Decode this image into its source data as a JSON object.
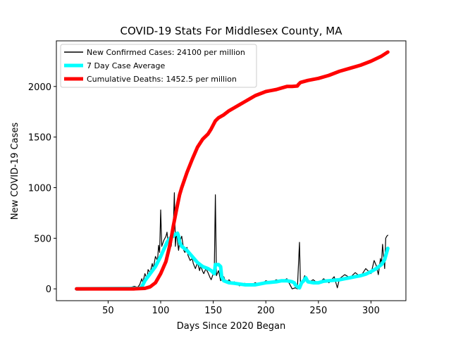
{
  "chart_data": {
    "type": "line",
    "title": "COVID-19 Stats For Middlesex County, MA",
    "xlabel": "Days Since 2020 Began",
    "ylabel": "New COVID-19 Cases",
    "xlim": [
      0.8,
      333.2
    ],
    "ylim": [
      -117,
      2451
    ],
    "x_ticks": [
      50,
      100,
      150,
      200,
      250,
      300
    ],
    "y_ticks": [
      0,
      500,
      1000,
      1500,
      2000
    ],
    "x_tick_labels": [
      "50",
      "100",
      "150",
      "200",
      "250",
      "300"
    ],
    "y_tick_labels": [
      "0",
      "500",
      "1000",
      "1500",
      "2000"
    ],
    "grid": false,
    "legend_position": "top-left",
    "series": [
      {
        "name": "New Confirmed Cases: 24100 per million",
        "color": "#000000",
        "style": "thin",
        "points": [
          [
            20,
            0
          ],
          [
            60,
            0
          ],
          [
            70,
            10
          ],
          [
            75,
            25
          ],
          [
            78,
            15
          ],
          [
            80,
            40
          ],
          [
            82,
            100
          ],
          [
            83,
            60
          ],
          [
            85,
            150
          ],
          [
            87,
            100
          ],
          [
            88,
            190
          ],
          [
            90,
            160
          ],
          [
            92,
            250
          ],
          [
            93,
            200
          ],
          [
            95,
            320
          ],
          [
            97,
            280
          ],
          [
            98,
            430
          ],
          [
            99,
            360
          ],
          [
            100,
            780
          ],
          [
            101,
            420
          ],
          [
            103,
            480
          ],
          [
            105,
            520
          ],
          [
            106,
            560
          ],
          [
            107,
            460
          ],
          [
            108,
            510
          ],
          [
            110,
            420
          ],
          [
            112,
            600
          ],
          [
            113,
            950
          ],
          [
            114,
            420
          ],
          [
            115,
            560
          ],
          [
            117,
            380
          ],
          [
            118,
            460
          ],
          [
            120,
            520
          ],
          [
            122,
            380
          ],
          [
            123,
            360
          ],
          [
            125,
            410
          ],
          [
            126,
            330
          ],
          [
            128,
            280
          ],
          [
            130,
            300
          ],
          [
            131,
            250
          ],
          [
            133,
            200
          ],
          [
            135,
            260
          ],
          [
            137,
            180
          ],
          [
            138,
            230
          ],
          [
            140,
            170
          ],
          [
            141,
            150
          ],
          [
            143,
            200
          ],
          [
            145,
            160
          ],
          [
            147,
            110
          ],
          [
            148,
            90
          ],
          [
            150,
            150
          ],
          [
            151,
            200
          ],
          [
            152,
            930
          ],
          [
            153,
            130
          ],
          [
            155,
            180
          ],
          [
            157,
            80
          ],
          [
            160,
            120
          ],
          [
            162,
            60
          ],
          [
            165,
            90
          ],
          [
            168,
            50
          ],
          [
            170,
            70
          ],
          [
            175,
            30
          ],
          [
            180,
            55
          ],
          [
            185,
            35
          ],
          [
            190,
            60
          ],
          [
            195,
            40
          ],
          [
            200,
            80
          ],
          [
            205,
            60
          ],
          [
            210,
            90
          ],
          [
            215,
            70
          ],
          [
            220,
            100
          ],
          [
            222,
            60
          ],
          [
            225,
            0
          ],
          [
            228,
            10
          ],
          [
            230,
            0
          ],
          [
            232,
            460
          ],
          [
            233,
            20
          ],
          [
            235,
            80
          ],
          [
            237,
            130
          ],
          [
            240,
            60
          ],
          [
            245,
            90
          ],
          [
            250,
            50
          ],
          [
            255,
            100
          ],
          [
            260,
            60
          ],
          [
            265,
            120
          ],
          [
            268,
            10
          ],
          [
            270,
            100
          ],
          [
            275,
            140
          ],
          [
            280,
            110
          ],
          [
            285,
            160
          ],
          [
            290,
            120
          ],
          [
            295,
            200
          ],
          [
            300,
            150
          ],
          [
            303,
            280
          ],
          [
            305,
            230
          ],
          [
            307,
            140
          ],
          [
            309,
            300
          ],
          [
            310,
            250
          ],
          [
            311,
            440
          ],
          [
            313,
            200
          ],
          [
            314,
            500
          ],
          [
            315,
            520
          ],
          [
            316,
            530
          ]
        ]
      },
      {
        "name": "7 Day Case Average",
        "color": "#00ffff",
        "style": "thick",
        "points": [
          [
            20,
            0
          ],
          [
            80,
            5
          ],
          [
            82,
            20
          ],
          [
            85,
            80
          ],
          [
            90,
            150
          ],
          [
            95,
            220
          ],
          [
            100,
            320
          ],
          [
            103,
            390
          ],
          [
            106,
            460
          ],
          [
            108,
            490
          ],
          [
            110,
            510
          ],
          [
            112,
            520
          ],
          [
            114,
            540
          ],
          [
            116,
            550
          ],
          [
            117,
            520
          ],
          [
            118,
            460
          ],
          [
            120,
            420
          ],
          [
            125,
            380
          ],
          [
            130,
            320
          ],
          [
            135,
            260
          ],
          [
            140,
            220
          ],
          [
            145,
            200
          ],
          [
            148,
            180
          ],
          [
            150,
            160
          ],
          [
            151,
            150
          ],
          [
            152,
            240
          ],
          [
            155,
            240
          ],
          [
            157,
            220
          ],
          [
            158,
            120
          ],
          [
            160,
            80
          ],
          [
            165,
            60
          ],
          [
            170,
            55
          ],
          [
            180,
            40
          ],
          [
            190,
            40
          ],
          [
            200,
            60
          ],
          [
            210,
            70
          ],
          [
            215,
            80
          ],
          [
            220,
            80
          ],
          [
            225,
            70
          ],
          [
            227,
            60
          ],
          [
            228,
            40
          ],
          [
            230,
            20
          ],
          [
            232,
            10
          ],
          [
            234,
            60
          ],
          [
            236,
            80
          ],
          [
            238,
            110
          ],
          [
            240,
            70
          ],
          [
            245,
            60
          ],
          [
            250,
            60
          ],
          [
            255,
            75
          ],
          [
            260,
            80
          ],
          [
            265,
            85
          ],
          [
            270,
            90
          ],
          [
            275,
            100
          ],
          [
            280,
            110
          ],
          [
            285,
            120
          ],
          [
            290,
            130
          ],
          [
            295,
            145
          ],
          [
            300,
            170
          ],
          [
            305,
            200
          ],
          [
            310,
            240
          ],
          [
            313,
            290
          ],
          [
            316,
            400
          ]
        ]
      },
      {
        "name": "Cumulative Deaths: 1452.5 per million",
        "color": "#ff0000",
        "style": "thick",
        "points": [
          [
            20,
            0
          ],
          [
            75,
            0
          ],
          [
            85,
            5
          ],
          [
            90,
            20
          ],
          [
            95,
            60
          ],
          [
            100,
            150
          ],
          [
            105,
            270
          ],
          [
            108,
            400
          ],
          [
            110,
            500
          ],
          [
            112,
            620
          ],
          [
            115,
            780
          ],
          [
            118,
            930
          ],
          [
            120,
            1000
          ],
          [
            125,
            1150
          ],
          [
            130,
            1280
          ],
          [
            135,
            1400
          ],
          [
            140,
            1480
          ],
          [
            145,
            1530
          ],
          [
            148,
            1580
          ],
          [
            150,
            1620
          ],
          [
            152,
            1660
          ],
          [
            155,
            1690
          ],
          [
            160,
            1720
          ],
          [
            165,
            1760
          ],
          [
            170,
            1790
          ],
          [
            175,
            1820
          ],
          [
            180,
            1850
          ],
          [
            185,
            1880
          ],
          [
            190,
            1910
          ],
          [
            195,
            1930
          ],
          [
            200,
            1950
          ],
          [
            205,
            1960
          ],
          [
            210,
            1970
          ],
          [
            215,
            1985
          ],
          [
            220,
            2000
          ],
          [
            225,
            2000
          ],
          [
            230,
            2005
          ],
          [
            231,
            2020
          ],
          [
            233,
            2040
          ],
          [
            240,
            2060
          ],
          [
            250,
            2080
          ],
          [
            260,
            2110
          ],
          [
            270,
            2150
          ],
          [
            280,
            2180
          ],
          [
            290,
            2210
          ],
          [
            300,
            2250
          ],
          [
            310,
            2300
          ],
          [
            316,
            2340
          ]
        ]
      }
    ]
  }
}
